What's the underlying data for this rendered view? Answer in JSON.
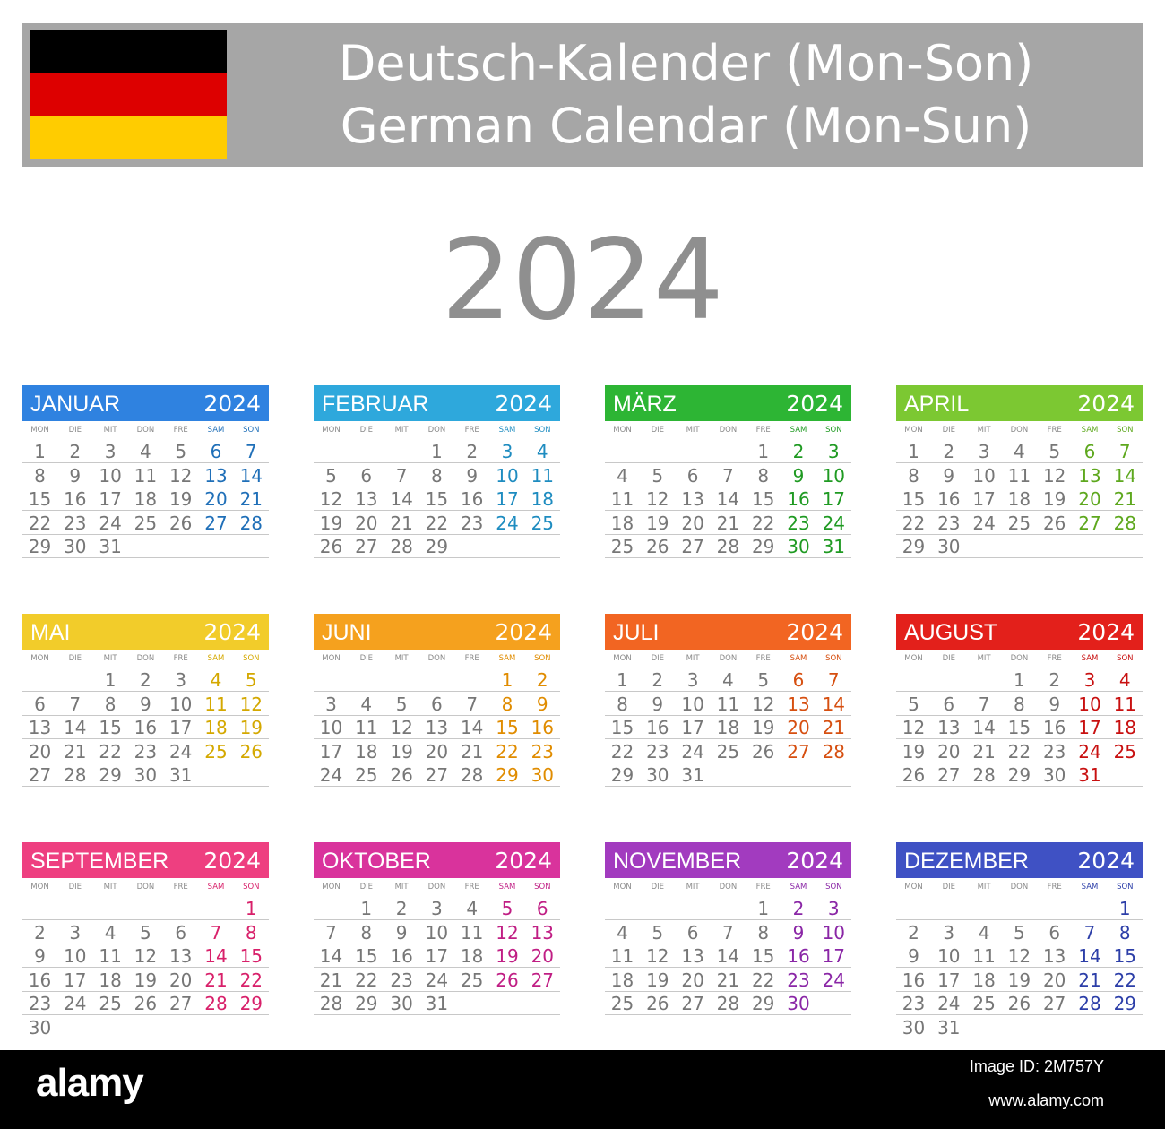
{
  "header": {
    "title_de": "Deutsch-Kalender (Mon-Son)",
    "title_en": "German Calendar (Mon-Sun)",
    "flag_colors": [
      "#000000",
      "#dd0000",
      "#ffcc00"
    ]
  },
  "year": "2024",
  "weekdays": [
    "MON",
    "DIE",
    "MIT",
    "DON",
    "FRE",
    "SAM",
    "SON"
  ],
  "months": [
    {
      "name": "JANUAR",
      "year": "2024",
      "color": "#2f82e0",
      "weekend_color": "#1f6fb8",
      "start": 0,
      "days": 31
    },
    {
      "name": "FEBRUAR",
      "year": "2024",
      "color": "#2ea8dc",
      "weekend_color": "#1e8cc0",
      "start": 3,
      "days": 29
    },
    {
      "name": "MÄRZ",
      "year": "2024",
      "color": "#2db534",
      "weekend_color": "#1f9a22",
      "start": 4,
      "days": 31
    },
    {
      "name": "APRIL",
      "year": "2024",
      "color": "#7cc832",
      "weekend_color": "#5ea81e",
      "start": 0,
      "days": 30
    },
    {
      "name": "MAI",
      "year": "2024",
      "color": "#f2cc2a",
      "weekend_color": "#d4a800",
      "start": 2,
      "days": 31
    },
    {
      "name": "JUNI",
      "year": "2024",
      "color": "#f5a11e",
      "weekend_color": "#e08c00",
      "start": 5,
      "days": 30
    },
    {
      "name": "JULI",
      "year": "2024",
      "color": "#f26522",
      "weekend_color": "#d64f10",
      "start": 0,
      "days": 31
    },
    {
      "name": "AUGUST",
      "year": "2024",
      "color": "#e3201b",
      "weekend_color": "#c81010",
      "start": 3,
      "days": 31
    },
    {
      "name": "SEPTEMBER",
      "year": "2024",
      "color": "#ee3f80",
      "weekend_color": "#d8206a",
      "start": 6,
      "days": 30
    },
    {
      "name": "OKTOBER",
      "year": "2024",
      "color": "#d9339c",
      "weekend_color": "#c01e84",
      "start": 1,
      "days": 31
    },
    {
      "name": "NOVEMBER",
      "year": "2024",
      "color": "#a23bbf",
      "weekend_color": "#8a26a6",
      "start": 4,
      "days": 30
    },
    {
      "name": "DEZEMBER",
      "year": "2024",
      "color": "#3f51c4",
      "weekend_color": "#2c3ea8",
      "start": 6,
      "days": 31
    }
  ],
  "footer": {
    "logo": "alamy",
    "image_id": "Image ID: 2M757Y",
    "url": "www.alamy.com"
  }
}
